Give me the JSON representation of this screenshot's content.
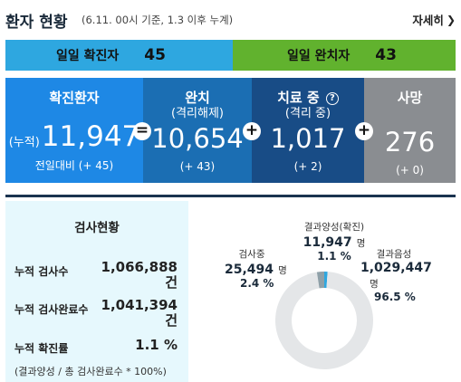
{
  "header": {
    "title": "환자 현황",
    "subtitle": "(6.11. 00시 기준, 1.3 이후 누계)",
    "more_label": "자세히"
  },
  "daily": {
    "confirmed_label": "일일 확진자",
    "confirmed_value": "45",
    "released_label": "일일 완치자",
    "released_value": "43"
  },
  "stats": {
    "confirmed": {
      "title": "확진환자",
      "prefix": "(누적)",
      "value": "11,947",
      "change": "전일대비 (+ 45)"
    },
    "released": {
      "title": "완치",
      "subtitle": "(격리해제)",
      "value": "10,654",
      "change": "(+ 43)"
    },
    "treating": {
      "title": "치료 중",
      "subtitle": "(격리 중)",
      "value": "1,017",
      "change": "(+ 2)"
    },
    "deceased": {
      "title": "사망",
      "value": "276",
      "change": "(+ 0)"
    },
    "operators": [
      "=",
      "+",
      "+",
      "+"
    ]
  },
  "tests": {
    "title": "검사현황",
    "rows": [
      {
        "label": "누적 검사수",
        "value": "1,066,888",
        "unit": "건"
      },
      {
        "label": "누적 검사완료수",
        "value": "1,041,394",
        "unit": "건"
      },
      {
        "label": "누적 확진률",
        "value": "1.1 %"
      }
    ],
    "note": "(결과양성 / 총 검사완료수 * 100%)"
  },
  "donut": {
    "testing": {
      "label": "검사중",
      "value": "25,494",
      "unit": "명",
      "pct": "2.4 %",
      "fraction": 0.024,
      "color": "#8fa0a8"
    },
    "positive": {
      "label": "결과양성(확진)",
      "value": "11,947",
      "unit": "명",
      "pct": "1.1 %",
      "fraction": 0.011,
      "color": "#2ea7e0"
    },
    "negative": {
      "label": "결과음성",
      "value": "1,029,447",
      "unit": "명",
      "pct": "96.5 %",
      "fraction": 0.965,
      "color": "#e4e6e8"
    }
  }
}
